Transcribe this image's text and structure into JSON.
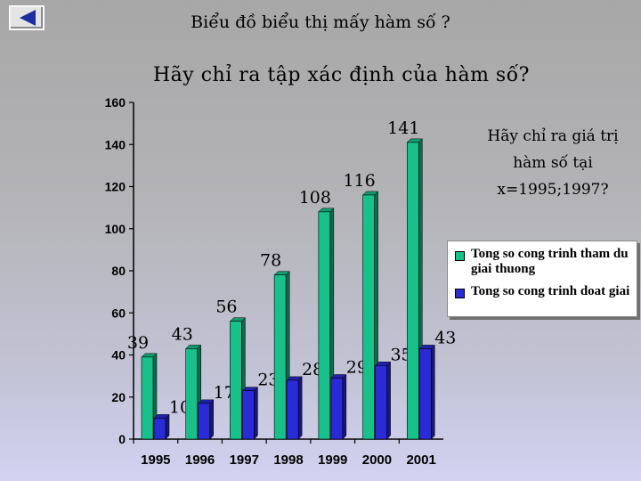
{
  "slide": {
    "title": "Biểu đồ biểu thị mấy hàm số ?",
    "question_main": "Hãy chỉ ra tập xác định của hàm số?",
    "question_side": "Hãy chỉ ra giá trị hàm số tại x=1995;1997?",
    "back_icon": "back-triangle-icon"
  },
  "colors": {
    "series1": "#18c08a",
    "series2": "#2a2ad6",
    "axis": "#000000"
  },
  "chart_data": {
    "type": "bar",
    "categories": [
      "1995",
      "1996",
      "1997",
      "1998",
      "1999",
      "2000",
      "2001"
    ],
    "series": [
      {
        "name": "Tong so cong trinh tham du giai thuong",
        "values": [
          39,
          43,
          56,
          78,
          108,
          116,
          141
        ]
      },
      {
        "name": "Tong so cong trinh doat giai",
        "values": [
          10,
          17,
          23,
          28,
          29,
          35,
          43
        ]
      }
    ],
    "ylim": [
      0,
      160
    ],
    "yticks": [
      0,
      20,
      40,
      60,
      80,
      100,
      120,
      140,
      160
    ],
    "grid": false,
    "legend": "right",
    "data_labels": true
  }
}
